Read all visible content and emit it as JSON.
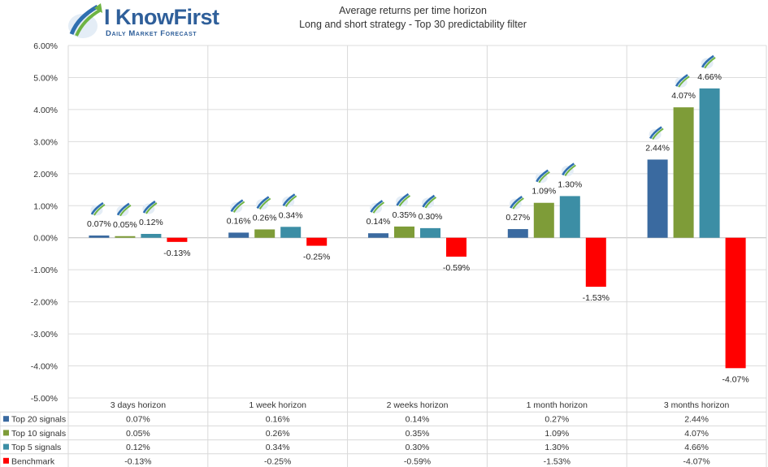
{
  "brand": {
    "name": "I KnowFirst",
    "tagline": "Daily Market Forecast"
  },
  "chart_data": {
    "type": "bar",
    "title": "Average returns per time horizon",
    "subtitle": "Long and short strategy - Top 30 predictability filter",
    "categories": [
      "3 days horizon",
      "1 week horizon",
      "2 weeks horizon",
      "1 month horizon",
      "3 months horizon"
    ],
    "series": [
      {
        "name": "Top 20 signals",
        "color": "#3a6aa0",
        "values": [
          0.07,
          0.16,
          0.14,
          0.27,
          2.44
        ],
        "labels": [
          "0.07%",
          "0.16%",
          "0.14%",
          "0.27%",
          "2.44%"
        ]
      },
      {
        "name": "Top 10 signals",
        "color": "#7e9c38",
        "values": [
          0.05,
          0.26,
          0.35,
          1.09,
          4.07
        ],
        "labels": [
          "0.05%",
          "0.26%",
          "0.35%",
          "1.09%",
          "4.07%"
        ]
      },
      {
        "name": "Top 5 signals",
        "color": "#3c8ea5",
        "values": [
          0.12,
          0.34,
          0.3,
          1.3,
          4.66
        ],
        "labels": [
          "0.12%",
          "0.34%",
          "0.30%",
          "1.30%",
          "4.66%"
        ]
      },
      {
        "name": "Benchmark",
        "color": "#ff0000",
        "values": [
          -0.13,
          -0.25,
          -0.59,
          -1.53,
          -4.07
        ],
        "labels": [
          "-0.13%",
          "-0.25%",
          "-0.59%",
          "-1.53%",
          "-4.07%"
        ]
      }
    ],
    "ylim": [
      -5,
      6
    ],
    "yticks": [
      6,
      5,
      4,
      3,
      2,
      1,
      0,
      -1,
      -2,
      -3,
      -4,
      -5
    ],
    "ytick_labels": [
      "6.00%",
      "5.00%",
      "4.00%",
      "3.00%",
      "2.00%",
      "1.00%",
      "0.00%",
      "-1.00%",
      "-2.00%",
      "-3.00%",
      "-4.00%",
      "-5.00%"
    ],
    "legend": "data-table-below",
    "logo_marks_above_signal_bars": true
  }
}
